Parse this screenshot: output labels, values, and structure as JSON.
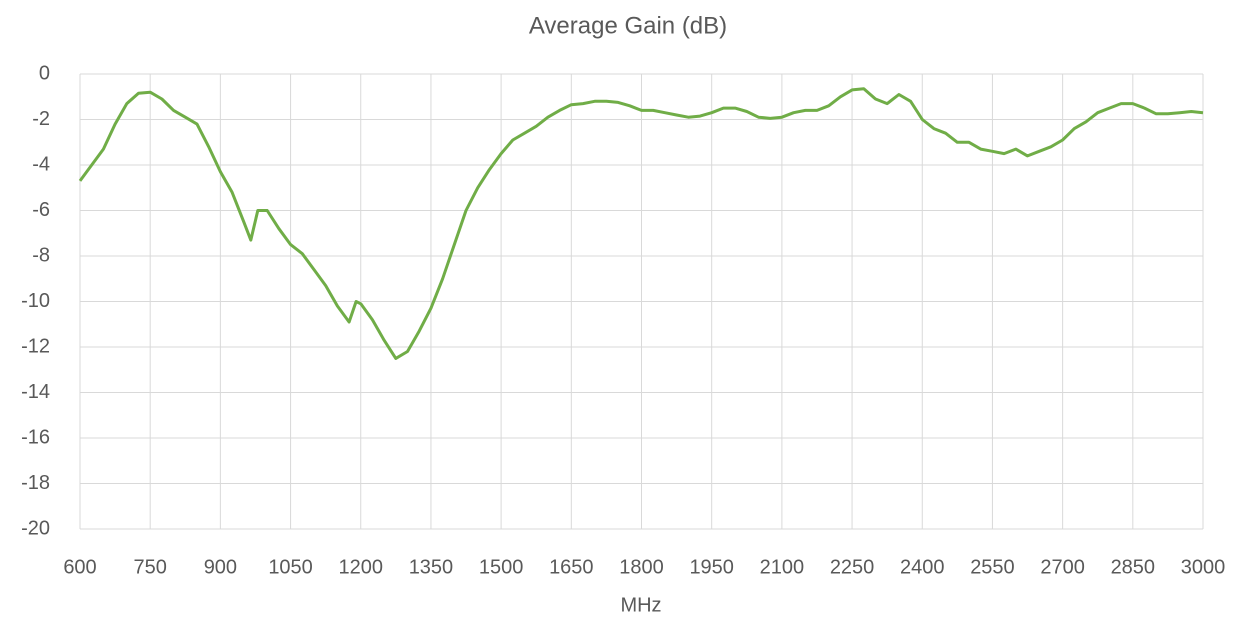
{
  "chart_data": {
    "type": "line",
    "title": "Average Gain (dB)",
    "x_label": "MHz",
    "x": [
      600,
      625,
      650,
      675,
      700,
      725,
      750,
      775,
      800,
      825,
      850,
      875,
      900,
      925,
      950,
      965,
      980,
      1000,
      1025,
      1050,
      1075,
      1100,
      1125,
      1150,
      1175,
      1190,
      1200,
      1225,
      1250,
      1275,
      1300,
      1325,
      1350,
      1375,
      1400,
      1425,
      1450,
      1475,
      1500,
      1525,
      1550,
      1575,
      1600,
      1625,
      1650,
      1675,
      1700,
      1725,
      1750,
      1775,
      1800,
      1825,
      1850,
      1875,
      1900,
      1925,
      1950,
      1975,
      2000,
      2025,
      2050,
      2075,
      2100,
      2125,
      2150,
      2175,
      2200,
      2225,
      2250,
      2275,
      2300,
      2325,
      2350,
      2375,
      2400,
      2425,
      2450,
      2475,
      2500,
      2525,
      2550,
      2575,
      2600,
      2625,
      2650,
      2675,
      2700,
      2725,
      2750,
      2775,
      2800,
      2825,
      2850,
      2875,
      2900,
      2925,
      2950,
      2975,
      3000
    ],
    "values": [
      -4.7,
      -4.0,
      -3.3,
      -2.2,
      -1.3,
      -0.85,
      -0.8,
      -1.1,
      -1.6,
      -1.9,
      -2.2,
      -3.2,
      -4.3,
      -5.2,
      -6.5,
      -7.3,
      -6.0,
      -6.0,
      -6.8,
      -7.5,
      -7.9,
      -8.6,
      -9.3,
      -10.2,
      -10.9,
      -10.0,
      -10.1,
      -10.8,
      -11.7,
      -12.5,
      -12.2,
      -11.3,
      -10.3,
      -9.0,
      -7.5,
      -6.0,
      -5.0,
      -4.2,
      -3.5,
      -2.9,
      -2.6,
      -2.3,
      -1.9,
      -1.6,
      -1.35,
      -1.3,
      -1.2,
      -1.2,
      -1.25,
      -1.4,
      -1.6,
      -1.6,
      -1.7,
      -1.8,
      -1.9,
      -1.85,
      -1.7,
      -1.5,
      -1.5,
      -1.65,
      -1.9,
      -1.95,
      -1.9,
      -1.7,
      -1.6,
      -1.6,
      -1.4,
      -1.0,
      -0.7,
      -0.65,
      -1.1,
      -1.3,
      -0.9,
      -1.2,
      -2.0,
      -2.4,
      -2.6,
      -3.0,
      -3.0,
      -3.3,
      -3.4,
      -3.5,
      -3.3,
      -3.6,
      -3.4,
      -3.2,
      -2.9,
      -2.4,
      -2.1,
      -1.7,
      -1.5,
      -1.3,
      -1.3,
      -1.5,
      -1.75,
      -1.75,
      -1.7,
      -1.65,
      -1.7
    ],
    "color": "#70ad47",
    "xlim": [
      600,
      3000
    ],
    "xticks": [
      600,
      750,
      900,
      1050,
      1200,
      1350,
      1500,
      1650,
      1800,
      1950,
      2100,
      2250,
      2400,
      2550,
      2700,
      2850,
      3000
    ],
    "ylim": [
      -20,
      0
    ],
    "yticks": [
      0,
      -2,
      -4,
      -6,
      -8,
      -10,
      -12,
      -14,
      -16,
      -18,
      -20
    ],
    "grid": true
  }
}
